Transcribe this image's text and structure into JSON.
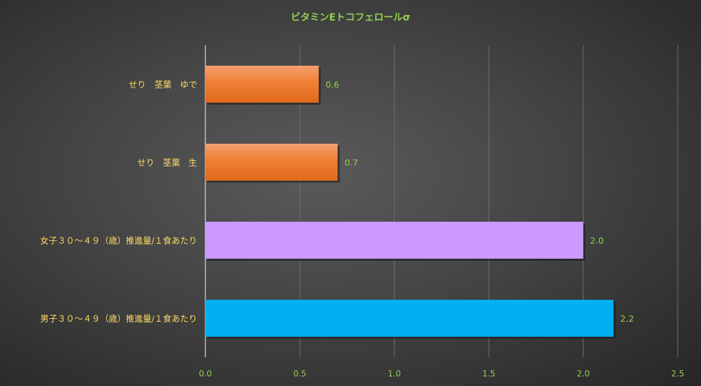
{
  "chart_data": {
    "type": "bar",
    "orientation": "horizontal",
    "title": "ビタミンEトコフェロールσ",
    "xlabel": "",
    "ylabel": "",
    "xlim": [
      0,
      2.5
    ],
    "x_ticks": [
      "0.0",
      "0.5",
      "1.0",
      "1.5",
      "2.0",
      "2.5"
    ],
    "grid": true,
    "legend": "none",
    "categories": [
      "せり　茎葉　ゆで",
      "せり　茎葉　生",
      "女子３０～４９（歳）推進量/１食あたり",
      "男子３０～４９（歳）推進量/１食あたり"
    ],
    "values": [
      0.6,
      0.7,
      2.0,
      2.16
    ],
    "data_labels": [
      "0.6",
      "0.7",
      "2.0",
      "2.2"
    ],
    "colors": [
      "#ed7d31",
      "#ed7d31",
      "#cc99ff",
      "#00b0f0"
    ]
  }
}
